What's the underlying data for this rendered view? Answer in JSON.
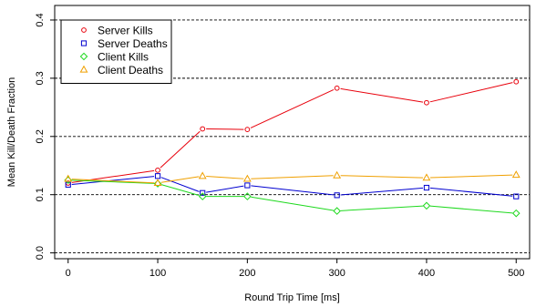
{
  "chart_data": {
    "type": "line",
    "title": "",
    "xlabel": "Round Trip Time [ms]",
    "ylabel": "Mean Kill/Death Fraction",
    "x": [
      0,
      100,
      150,
      200,
      300,
      400,
      500
    ],
    "xticks": [
      0,
      100,
      200,
      300,
      400,
      500
    ],
    "xlim": [
      -15,
      515
    ],
    "yticks": [
      0.0,
      0.1,
      0.2,
      0.3,
      0.4
    ],
    "ytick_labels": [
      "0.0",
      "0.1",
      "0.2",
      "0.3",
      "0.4"
    ],
    "ylim": [
      -0.01,
      0.425
    ],
    "grid": "horizontal dashed at y ticks",
    "legend_position": "top-left",
    "series": [
      {
        "name": "Server Kills",
        "marker": "circle",
        "color": "#e8000b",
        "values": [
          0.12,
          0.142,
          0.213,
          0.212,
          0.283,
          0.258,
          0.294
        ]
      },
      {
        "name": "Server Deaths",
        "marker": "square",
        "color": "#0000d0",
        "values": [
          0.117,
          0.132,
          0.103,
          0.116,
          0.099,
          0.112,
          0.097
        ]
      },
      {
        "name": "Client Kills",
        "marker": "diamond",
        "color": "#1ed91e",
        "values": [
          0.125,
          0.119,
          0.097,
          0.097,
          0.072,
          0.081,
          0.068
        ]
      },
      {
        "name": "Client Deaths",
        "marker": "triangle",
        "color": "#f0a000",
        "values": [
          0.127,
          0.12,
          0.132,
          0.127,
          0.133,
          0.129,
          0.134
        ]
      }
    ]
  }
}
